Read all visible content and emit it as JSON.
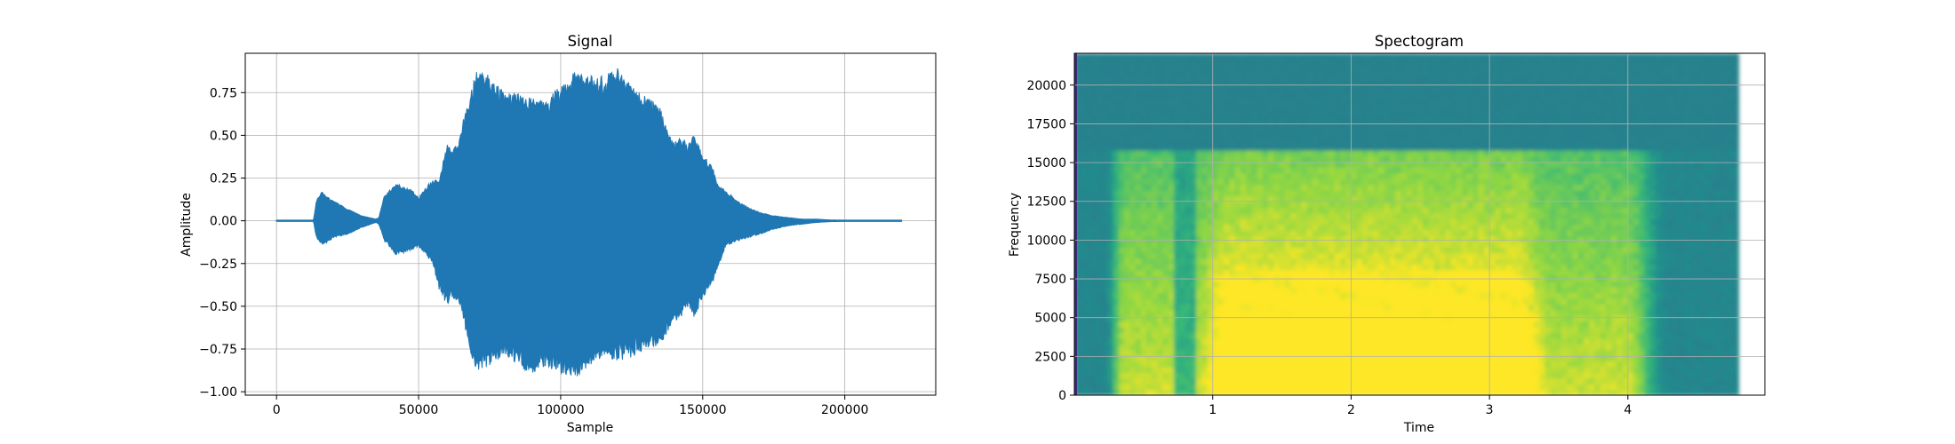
{
  "chart_data": [
    {
      "type": "line",
      "title": "Signal",
      "xlabel": "Sample",
      "ylabel": "Amplitude",
      "xlim": [
        -11000,
        232000
      ],
      "ylim": [
        -1.02,
        0.98
      ],
      "grid": true,
      "color": "#1f77b4",
      "x_ticks": [
        0,
        50000,
        100000,
        150000,
        200000
      ],
      "x_tick_labels": [
        "0",
        "50000",
        "100000",
        "150000",
        "200000"
      ],
      "y_ticks": [
        0.75,
        0.5,
        0.25,
        0.0,
        -0.25,
        -0.5,
        -0.75,
        -1.0
      ],
      "y_tick_labels": [
        "0.75",
        "0.50",
        "0.25",
        "0.00",
        "−0.25",
        "−0.50",
        "−0.75",
        "−1.00"
      ],
      "envelope": {
        "x": [
          0,
          13000,
          14000,
          16000,
          18000,
          20000,
          25000,
          30000,
          35000,
          36000,
          38000,
          42000,
          47000,
          50000,
          55000,
          57000,
          60000,
          62000,
          64000,
          66000,
          68000,
          70000,
          75000,
          80000,
          85000,
          90000,
          95000,
          100000,
          105000,
          110000,
          115000,
          120000,
          125000,
          130000,
          135000,
          138000,
          140000,
          143000,
          145000,
          147000,
          150000,
          153000,
          155000,
          158000,
          162000,
          166000,
          170000,
          175000,
          180000,
          185000,
          190000,
          195000,
          200000,
          210000,
          220000
        ],
        "upper": [
          0.0,
          0.0,
          0.12,
          0.17,
          0.14,
          0.12,
          0.07,
          0.03,
          0.01,
          0.02,
          0.15,
          0.22,
          0.19,
          0.14,
          0.25,
          0.23,
          0.45,
          0.42,
          0.45,
          0.62,
          0.72,
          0.88,
          0.85,
          0.75,
          0.75,
          0.73,
          0.7,
          0.8,
          0.88,
          0.85,
          0.85,
          0.9,
          0.8,
          0.73,
          0.68,
          0.5,
          0.48,
          0.5,
          0.45,
          0.52,
          0.38,
          0.35,
          0.22,
          0.18,
          0.12,
          0.08,
          0.05,
          0.03,
          0.02,
          0.01,
          0.01,
          0.005,
          0.004,
          0.002,
          0.0
        ],
        "lower": [
          0.0,
          0.0,
          -0.1,
          -0.14,
          -0.13,
          -0.1,
          -0.08,
          -0.04,
          -0.01,
          -0.02,
          -0.12,
          -0.2,
          -0.18,
          -0.15,
          -0.25,
          -0.4,
          -0.5,
          -0.45,
          -0.48,
          -0.6,
          -0.75,
          -0.9,
          -0.85,
          -0.8,
          -0.85,
          -0.9,
          -0.85,
          -0.9,
          -0.93,
          -0.85,
          -0.8,
          -0.82,
          -0.8,
          -0.75,
          -0.73,
          -0.65,
          -0.6,
          -0.55,
          -0.52,
          -0.58,
          -0.45,
          -0.38,
          -0.3,
          -0.15,
          -0.12,
          -0.1,
          -0.08,
          -0.05,
          -0.03,
          -0.02,
          -0.01,
          -0.005,
          -0.004,
          -0.002,
          0.0
        ]
      }
    },
    {
      "type": "heatmap",
      "title": "Spectogram",
      "xlabel": "Time",
      "ylabel": "Frequency",
      "xlim": [
        0,
        4.99
      ],
      "ylim": [
        0,
        22050
      ],
      "data_x_range": [
        0,
        4.8
      ],
      "grid": true,
      "colormap": "viridis",
      "x_ticks": [
        1,
        2,
        3,
        4
      ],
      "x_tick_labels": [
        "1",
        "2",
        "3",
        "4"
      ],
      "y_ticks": [
        0,
        2500,
        5000,
        7500,
        10000,
        12500,
        15000,
        17500,
        20000
      ],
      "y_tick_labels": [
        "0",
        "2500",
        "5000",
        "7500",
        "10000",
        "12500",
        "15000",
        "17500",
        "20000"
      ]
    }
  ]
}
